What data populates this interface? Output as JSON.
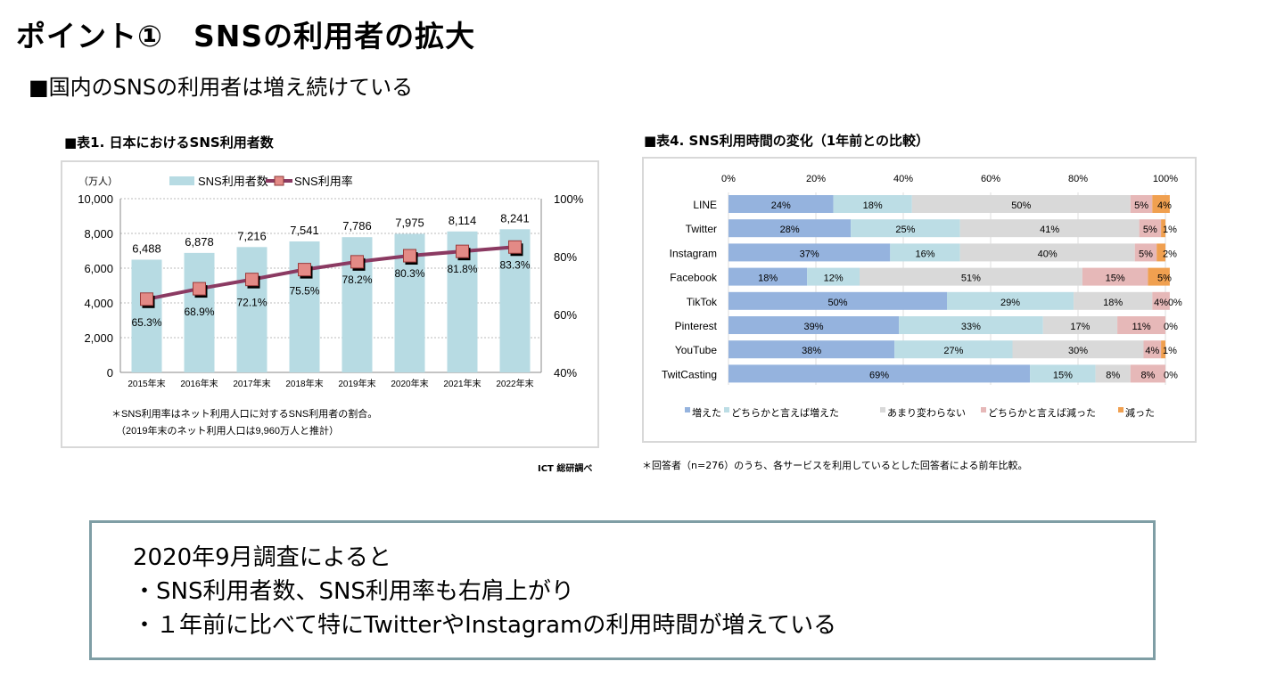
{
  "slide": {
    "title": "ポイント①　SNSの利用者の拡大",
    "subtitle": "■国内のSNSの利用者は増え続けている",
    "summary": [
      "2020年9月調査によると",
      "・SNS利用者数、SNS利用率も右肩上がり",
      "・１年前に比べて特にTwitterやInstagramの利用時間が増えている"
    ]
  },
  "chart_data": [
    {
      "type": "bar",
      "title": "■表1. 日本におけるSNS利用者数",
      "ylabel": "（万人）",
      "categories": [
        "2015年末",
        "2016年末",
        "2017年末",
        "2018年末",
        "2019年末",
        "2020年末",
        "2021年末",
        "2022年末"
      ],
      "series": [
        {
          "name": "SNS利用者数",
          "type": "bar",
          "axis": "left",
          "values": [
            6488,
            6878,
            7216,
            7541,
            7786,
            7975,
            8114,
            8241
          ],
          "labels": [
            "6,488",
            "6,878",
            "7,216",
            "7,541",
            "7,786",
            "7,975",
            "8,114",
            "8,241"
          ],
          "color": "#b7dbe3"
        },
        {
          "name": "SNS利用率",
          "type": "line",
          "axis": "right",
          "values": [
            65.3,
            68.9,
            72.1,
            75.5,
            78.2,
            80.3,
            81.8,
            83.3
          ],
          "labels": [
            "65.3%",
            "68.9%",
            "72.1%",
            "75.5%",
            "78.2%",
            "80.3%",
            "81.8%",
            "83.3%"
          ],
          "color": "#8b3a62",
          "marker_color": "#e38a86"
        }
      ],
      "ylim": [
        0,
        10000
      ],
      "y2lim": [
        40,
        100
      ],
      "yticks": [
        "0",
        "2,000",
        "4,000",
        "6,000",
        "8,000",
        "10,000"
      ],
      "y2ticks": [
        "40%",
        "60%",
        "80%",
        "100%"
      ],
      "grid": true,
      "legend": "top",
      "notes": [
        "＊SNS利用率はネット利用人口に対するSNS利用者の割合。",
        "（2019年末のネット利用人口は9,960万人と推計）"
      ],
      "source": "ICT 総研調べ"
    },
    {
      "type": "bar",
      "orientation": "horizontal-stacked-100",
      "title": "■表4. SNS利用時間の変化（1年前との比較）",
      "categories": [
        "LINE",
        "Twitter",
        "Instagram",
        "Facebook",
        "TikTok",
        "Pinterest",
        "YouTube",
        "TwitCasting"
      ],
      "xticks": [
        "0%",
        "20%",
        "40%",
        "60%",
        "80%",
        "100%"
      ],
      "xlim": [
        0,
        100
      ],
      "series": [
        {
          "name": "増えた",
          "color": "#95b3de",
          "values": [
            24,
            28,
            37,
            18,
            50,
            39,
            38,
            69
          ]
        },
        {
          "name": "どちらかと言えば増えた",
          "color": "#bcdde5",
          "values": [
            18,
            25,
            16,
            12,
            29,
            33,
            27,
            15
          ]
        },
        {
          "name": "あまり変わらない",
          "color": "#d9d9d9",
          "values": [
            50,
            41,
            40,
            51,
            18,
            17,
            30,
            8
          ]
        },
        {
          "name": "どちらかと言えば減った",
          "color": "#e6b8b8",
          "values": [
            5,
            5,
            5,
            15,
            4,
            11,
            4,
            8
          ]
        },
        {
          "name": "減った",
          "color": "#f0a050",
          "values": [
            4,
            1,
            2,
            5,
            0,
            0,
            1,
            0
          ]
        }
      ],
      "legend": "bottom",
      "note": "＊回答者（n=276）のうち、各サービスを利用しているとした回答者による前年比較。"
    }
  ]
}
